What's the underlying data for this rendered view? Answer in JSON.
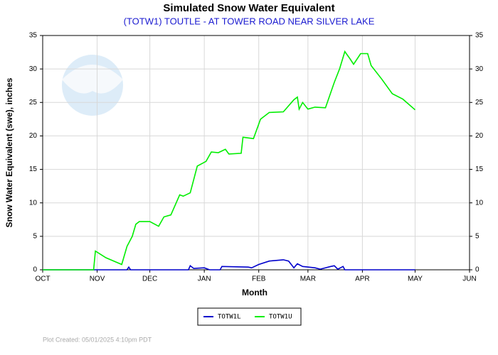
{
  "chart_data": {
    "type": "line",
    "title": "Simulated Snow Water Equivalent",
    "subtitle": "(TOTW1) TOUTLE - AT TOWER ROAD NEAR SILVER LAKE",
    "x_label": "Month",
    "y_label": "Snow Water Equivalent (swe),  inches",
    "footnote": "Plot Created: 05/01/2025 4:10pm PDT",
    "xlim": [
      0,
      243
    ],
    "xticks": [
      {
        "value": 0,
        "label": "OCT"
      },
      {
        "value": 31,
        "label": "NOV"
      },
      {
        "value": 61,
        "label": "DEC"
      },
      {
        "value": 92,
        "label": "JAN"
      },
      {
        "value": 123,
        "label": "FEB"
      },
      {
        "value": 151,
        "label": "MAR"
      },
      {
        "value": 182,
        "label": "APR"
      },
      {
        "value": 212,
        "label": "MAY"
      },
      {
        "value": 243,
        "label": "JUN"
      }
    ],
    "ylim": [
      0,
      35
    ],
    "yticks": [
      0,
      5,
      10,
      15,
      20,
      25,
      30,
      35
    ],
    "y2lim": [
      0,
      35
    ],
    "y2ticks": [
      0,
      5,
      10,
      15,
      20,
      25,
      30,
      35
    ],
    "grid": true,
    "legend": "bottom",
    "series": [
      {
        "name": "TOTW1L",
        "color": "#0000cc",
        "x": [
          0,
          48,
          49,
          50,
          83,
          84,
          86,
          92,
          95,
          101,
          102,
          117,
          119,
          123,
          129,
          137,
          140,
          143,
          145,
          148,
          155,
          158,
          164,
          166,
          168,
          171,
          172,
          212
        ],
        "values": [
          0,
          0,
          0.4,
          0,
          0,
          0.6,
          0.2,
          0.3,
          0,
          0,
          0.5,
          0.4,
          0.3,
          0.8,
          1.3,
          1.5,
          1.3,
          0.3,
          0.9,
          0.5,
          0.3,
          0.1,
          0.5,
          0.6,
          0.1,
          0.5,
          0,
          0
        ]
      },
      {
        "name": "TOTW1U",
        "color": "#00ee00",
        "x": [
          0,
          29,
          30,
          36,
          45,
          48,
          51,
          53,
          55,
          61,
          66,
          69,
          73,
          78,
          80,
          84,
          88,
          93,
          96,
          100,
          104,
          106,
          113,
          114,
          120,
          124,
          129,
          137,
          143,
          145,
          146,
          148,
          151,
          155,
          161,
          166,
          169,
          172,
          175,
          177,
          179,
          181,
          185,
          187,
          193,
          199,
          205,
          212
        ],
        "values": [
          0,
          0,
          2.8,
          1.8,
          0.8,
          3.5,
          5.0,
          6.8,
          7.2,
          7.2,
          6.5,
          7.9,
          8.2,
          11.2,
          11.0,
          11.5,
          15.5,
          16.2,
          17.6,
          17.5,
          18.0,
          17.3,
          17.4,
          19.8,
          19.6,
          22.5,
          23.5,
          23.6,
          25.4,
          25.8,
          24.0,
          25.0,
          24.0,
          24.3,
          24.2,
          28.0,
          30.0,
          32.6,
          31.5,
          30.7,
          31.5,
          32.3,
          32.3,
          30.5,
          28.5,
          26.3,
          25.5,
          23.9
        ]
      }
    ]
  }
}
